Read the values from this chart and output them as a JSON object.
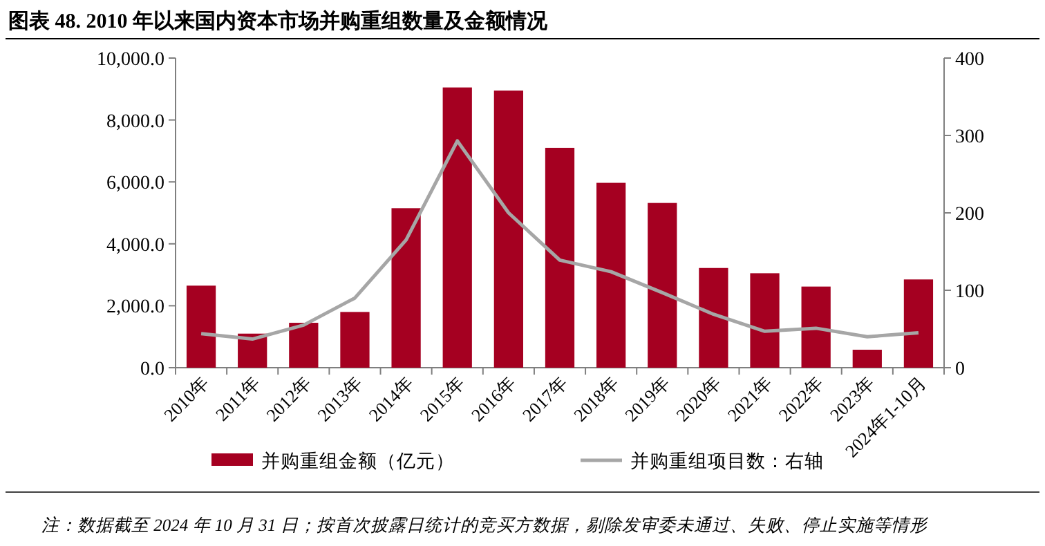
{
  "chart_data": {
    "type": "bar",
    "title": "图表 48. 2010 年以来国内资本市场并购重组数量及金额情况",
    "categories": [
      "2010年",
      "2011年",
      "2012年",
      "2013年",
      "2014年",
      "2015年",
      "2016年",
      "2017年",
      "2018年",
      "2019年",
      "2020年",
      "2021年",
      "2022年",
      "2023年",
      "2024年1-10月"
    ],
    "series": [
      {
        "name": "并购重组金额（亿元）",
        "color": "#a50021",
        "values": [
          2650,
          1100,
          1450,
          1800,
          5150,
          9050,
          8950,
          7100,
          5970,
          5320,
          3220,
          3050,
          2620,
          580,
          2850
        ]
      },
      {
        "name": "并购重组项目数：右轴",
        "type": "line",
        "axis": "y2",
        "color": "#a6a6a6",
        "values": [
          44,
          37,
          55,
          90,
          165,
          293,
          200,
          139,
          124,
          97,
          69,
          47,
          51,
          40,
          45
        ]
      }
    ],
    "ylim": [
      0,
      10000
    ],
    "yticks": [
      {
        "value": 0,
        "label": "0.0"
      },
      {
        "value": 2000,
        "label": "2,000.0"
      },
      {
        "value": 4000,
        "label": "4,000.0"
      },
      {
        "value": 6000,
        "label": "6,000.0"
      },
      {
        "value": 8000,
        "label": "8,000.0"
      },
      {
        "value": 10000,
        "label": "10,000.0"
      }
    ],
    "y2lim": [
      0,
      400
    ],
    "y2ticks": [
      0,
      100,
      200,
      300,
      400
    ],
    "legend": "bottom",
    "annotations": [
      "注：数据截至 2024 年 10 月 31 日；按首次披露日统计的竞买方数据，剔除发审委未通过、失败、停止实施等情形"
    ]
  }
}
